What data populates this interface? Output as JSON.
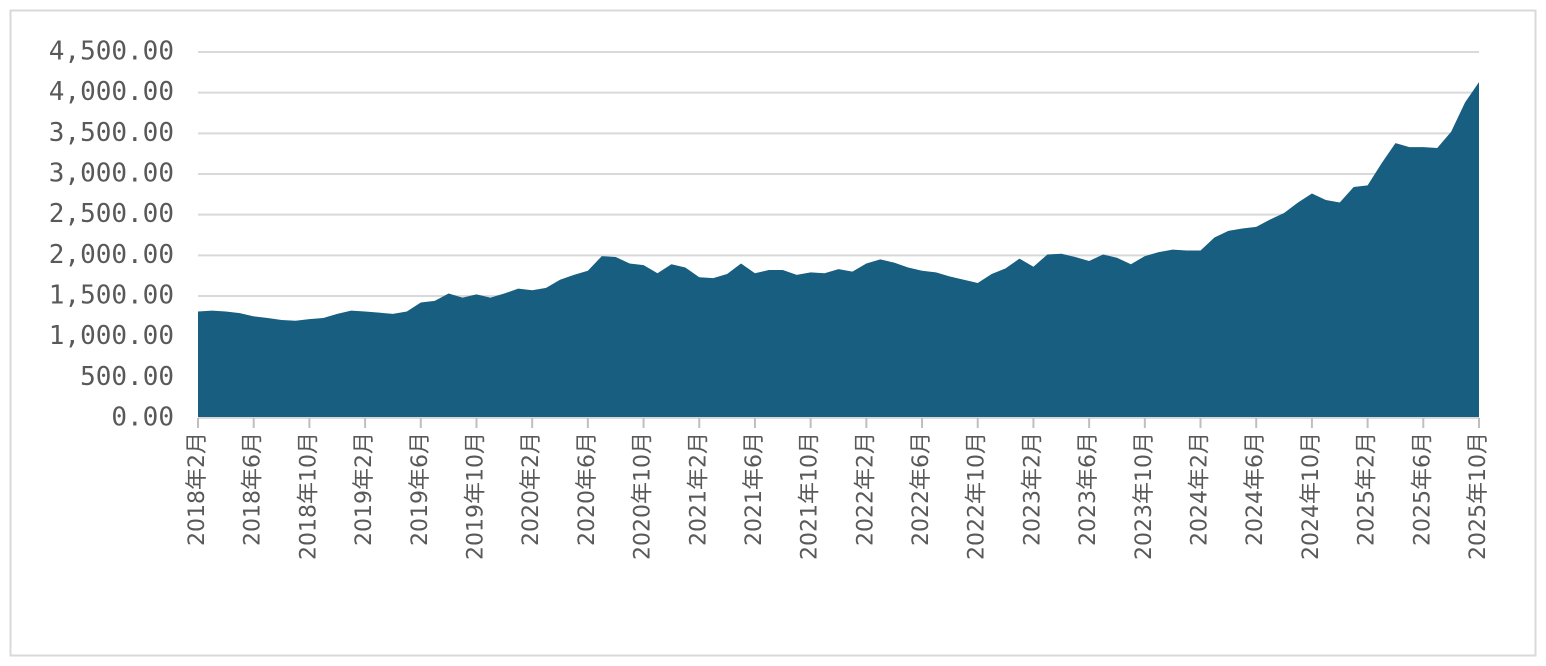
{
  "chart_data": {
    "type": "area",
    "categories": [
      "2018年2月",
      null,
      null,
      null,
      "2018年6月",
      null,
      null,
      null,
      "2018年10月",
      null,
      null,
      null,
      "2019年2月",
      null,
      null,
      null,
      "2019年6月",
      null,
      null,
      null,
      "2019年10月",
      null,
      null,
      null,
      "2020年2月",
      null,
      null,
      null,
      "2020年6月",
      null,
      null,
      null,
      "2020年10月",
      null,
      null,
      null,
      "2021年2月",
      null,
      null,
      null,
      "2021年6月",
      null,
      null,
      null,
      "2021年10月",
      null,
      null,
      null,
      "2022年2月",
      null,
      null,
      null,
      "2022年6月",
      null,
      null,
      null,
      "2022年10月",
      null,
      null,
      null,
      "2023年2月",
      null,
      null,
      null,
      "2023年6月",
      null,
      null,
      null,
      "2023年10月",
      null,
      null,
      null,
      "2024年2月",
      null,
      null,
      null,
      "2024年6月",
      null,
      null,
      null,
      "2024年10月",
      null,
      null,
      null,
      "2025年2月",
      null,
      null,
      null,
      "2025年6月",
      null,
      null,
      null,
      "2025年10月"
    ],
    "values": [
      1310,
      1320,
      1310,
      1290,
      1250,
      1230,
      1205,
      1195,
      1215,
      1230,
      1280,
      1320,
      1310,
      1295,
      1280,
      1310,
      1420,
      1440,
      1530,
      1480,
      1520,
      1480,
      1530,
      1590,
      1570,
      1600,
      1700,
      1760,
      1810,
      1990,
      1980,
      1900,
      1880,
      1780,
      1890,
      1850,
      1730,
      1720,
      1770,
      1900,
      1780,
      1820,
      1820,
      1760,
      1790,
      1780,
      1830,
      1800,
      1900,
      1950,
      1910,
      1850,
      1810,
      1790,
      1740,
      1700,
      1660,
      1770,
      1840,
      1960,
      1860,
      2010,
      2020,
      1980,
      1930,
      2010,
      1970,
      1890,
      1990,
      2040,
      2070,
      2060,
      2060,
      2220,
      2300,
      2330,
      2350,
      2440,
      2520,
      2650,
      2760,
      2680,
      2650,
      2840,
      2860,
      3130,
      3380,
      3330,
      3330,
      3320,
      3520,
      3880,
      4130
    ],
    "color": "#185e80",
    "ylim": [
      0,
      4500
    ],
    "yticks": [
      {
        "value": 0,
        "label": "0.00"
      },
      {
        "value": 500,
        "label": "500.00"
      },
      {
        "value": 1000,
        "label": "1,000.00"
      },
      {
        "value": 1500,
        "label": "1,500.00"
      },
      {
        "value": 2000,
        "label": "2,000.00"
      },
      {
        "value": 2500,
        "label": "2,500.00"
      },
      {
        "value": 3000,
        "label": "3,000.00"
      },
      {
        "value": 3500,
        "label": "3,500.00"
      },
      {
        "value": 4000,
        "label": "4,000.00"
      },
      {
        "value": 4500,
        "label": "4,500.00"
      }
    ],
    "grid": true
  }
}
